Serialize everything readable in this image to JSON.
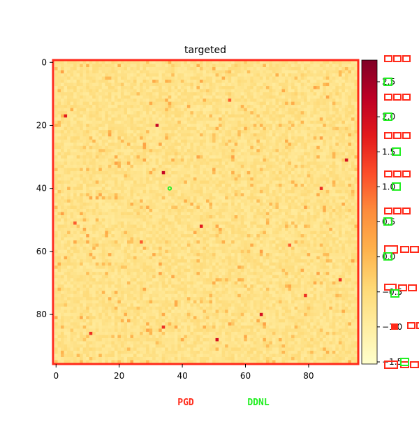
{
  "chart_data": {
    "type": "heatmap",
    "title": "targeted",
    "grid_size": 96,
    "xlim": [
      0,
      95
    ],
    "ylim": [
      95,
      0
    ],
    "x_ticks": [
      "0",
      "20",
      "40",
      "60",
      "80"
    ],
    "y_ticks": [
      "0",
      "20",
      "40",
      "60",
      "80"
    ],
    "colormap": "YlOrRd",
    "colorbar_ticks": [
      "2.5",
      "2.0",
      "1.5",
      "1.0",
      "0.5",
      "0.0",
      "−0.5",
      "−1.0",
      "−1.5"
    ],
    "hot_cells": [
      {
        "x": 3,
        "y": 17,
        "v": 0.75
      },
      {
        "x": 32,
        "y": 20,
        "v": 0.85
      },
      {
        "x": 34,
        "y": 35,
        "v": 0.85
      },
      {
        "x": 92,
        "y": 31,
        "v": 0.8
      },
      {
        "x": 46,
        "y": 52,
        "v": 0.75
      },
      {
        "x": 65,
        "y": 80,
        "v": 0.8
      },
      {
        "x": 51,
        "y": 88,
        "v": 0.8
      },
      {
        "x": 79,
        "y": 74,
        "v": 0.7
      },
      {
        "x": 90,
        "y": 69,
        "v": 0.7
      },
      {
        "x": 84,
        "y": 40,
        "v": 0.7
      },
      {
        "x": 11,
        "y": 86,
        "v": 0.7
      },
      {
        "x": 34,
        "y": 84,
        "v": 0.7
      },
      {
        "x": 6,
        "y": 51,
        "v": 0.6
      },
      {
        "x": 74,
        "y": 58,
        "v": 0.6
      },
      {
        "x": 27,
        "y": 57,
        "v": 0.6
      },
      {
        "x": 55,
        "y": 12,
        "v": 0.6
      }
    ],
    "ddnl_marker": {
      "x": 36,
      "y": 40
    },
    "annotation_colors": {
      "pgd": "#ff2a1a",
      "ddnl": "#22ee22",
      "frame": "#ff2a1a"
    }
  },
  "legend": {
    "pgd_label": "PGD",
    "ddnl_label": "DDNL"
  }
}
